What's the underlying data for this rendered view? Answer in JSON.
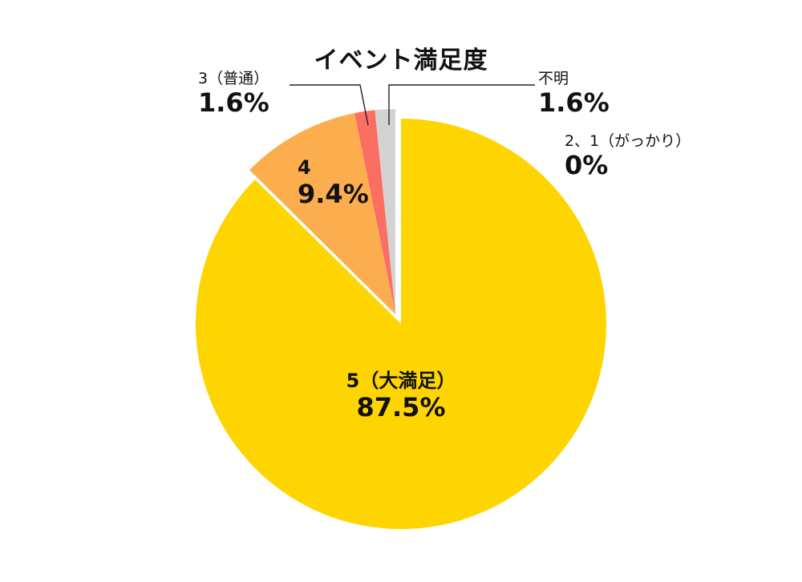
{
  "title": "イベント満足度",
  "chart_data": {
    "type": "pie",
    "title": "イベント満足度",
    "start_angle_deg": 0,
    "direction": "counterclockwise-for-minor-slices",
    "slices": [
      {
        "label": "5（大満足）",
        "value": 87.5,
        "value_label": "87.5%",
        "color": "#FED501",
        "exploded": false
      },
      {
        "label": "4",
        "value": 9.4,
        "value_label": "9.4%",
        "color": "#FCAE4E",
        "exploded": true
      },
      {
        "label": "3（普通）",
        "value": 1.6,
        "value_label": "1.6%",
        "color": "#FB6F63",
        "exploded": true
      },
      {
        "label": "2、1（がっかり）",
        "value": 0,
        "value_label": "0%",
        "color": "#999999",
        "exploded": false
      },
      {
        "label": "不明",
        "value": 1.6,
        "value_label": "1.6%",
        "color": "#D3D3D3",
        "exploded": true
      }
    ],
    "legend": "none (labels placed on/near slices with leader lines)"
  },
  "labels": {
    "s5": {
      "name": "5（大満足）",
      "val": "87.5%"
    },
    "s4": {
      "name": "4",
      "val": "9.4%"
    },
    "s3": {
      "name": "3（普通）",
      "val": "1.6%"
    },
    "s21": {
      "name": "2、1（がっかり）",
      "val": "0%"
    },
    "unknown": {
      "name": "不明",
      "val": "1.6%"
    }
  }
}
